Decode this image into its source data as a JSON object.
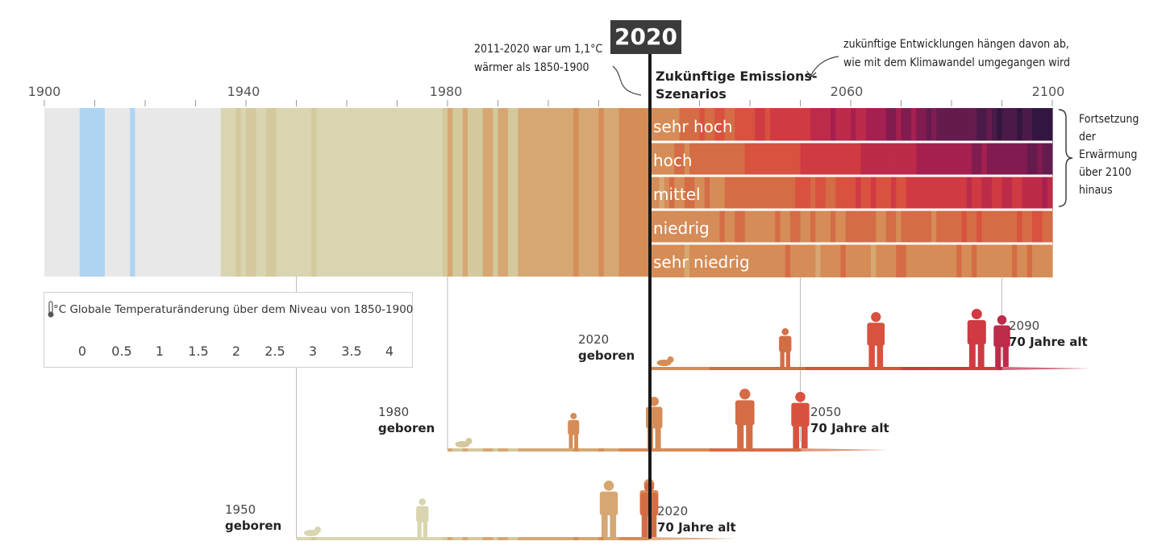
{
  "chart_data": {
    "type": "heatmap",
    "title": "",
    "x_axis": {
      "ticks": [
        "1900",
        "1940",
        "1980",
        "2060",
        "2100"
      ],
      "tick_years": [
        1900,
        1940,
        1980,
        2060,
        2100
      ],
      "range": [
        1900,
        2100
      ]
    },
    "highlight_year": "2020",
    "observed": {
      "years": [
        1900,
        1901,
        1902,
        1903,
        1904,
        1905,
        1906,
        1907,
        1908,
        1909,
        1910,
        1911,
        1912,
        1913,
        1914,
        1915,
        1916,
        1917,
        1918,
        1919,
        1920,
        1921,
        1922,
        1923,
        1924,
        1925,
        1926,
        1927,
        1928,
        1929,
        1930,
        1931,
        1932,
        1933,
        1934,
        1935,
        1936,
        1937,
        1938,
        1939,
        1940,
        1941,
        1942,
        1943,
        1944,
        1945,
        1946,
        1947,
        1948,
        1949,
        1950,
        1951,
        1952,
        1953,
        1954,
        1955,
        1956,
        1957,
        1958,
        1959,
        1960,
        1961,
        1962,
        1963,
        1964,
        1965,
        1966,
        1967,
        1968,
        1969,
        1970,
        1971,
        1972,
        1973,
        1974,
        1975,
        1976,
        1977,
        1978,
        1979,
        1980,
        1981,
        1982,
        1983,
        1984,
        1985,
        1986,
        1987,
        1988,
        1989,
        1990,
        1991,
        1992,
        1993,
        1994,
        1995,
        1996,
        1997,
        1998,
        1999,
        2000,
        2001,
        2002,
        2003,
        2004,
        2005,
        2006,
        2007,
        2008,
        2009,
        2010,
        2011,
        2012,
        2013,
        2014,
        2015,
        2016,
        2017,
        2018,
        2019,
        2020
      ],
      "values": [
        0.1,
        0.1,
        -0.1,
        0.1,
        0.1,
        -0.1,
        0.1,
        -0.3,
        -0.3,
        -0.3,
        -0.3,
        -0.3,
        -0.1,
        0.1,
        0.1,
        0.1,
        -0.1,
        -0.3,
        0.1,
        0.1,
        0.1,
        0.1,
        0.1,
        0.1,
        0.1,
        0.1,
        0.1,
        0.1,
        0.1,
        0.1,
        0.1,
        0.1,
        0.1,
        0.1,
        0.1,
        0.4,
        0.4,
        0.4,
        0.5,
        0.4,
        0.5,
        0.5,
        0.4,
        0.4,
        0.5,
        0.5,
        0.4,
        0.4,
        0.4,
        0.4,
        0.4,
        0.4,
        0.4,
        0.5,
        0.4,
        0.4,
        0.4,
        0.4,
        0.4,
        0.4,
        0.4,
        0.4,
        0.4,
        0.4,
        0.4,
        0.4,
        0.4,
        0.4,
        0.4,
        0.4,
        0.4,
        0.4,
        0.4,
        0.4,
        0.4,
        0.4,
        0.4,
        0.4,
        0.4,
        0.5,
        0.9,
        0.8,
        0.6,
        0.9,
        0.7,
        0.7,
        0.8,
        0.9,
        0.9,
        0.8,
        0.9,
        0.9,
        0.8,
        0.8,
        0.9,
        1.0,
        0.9,
        1.0,
        1.1,
        1.0,
        1.0,
        1.1,
        1.1,
        1.1,
        1.1,
        1.2,
        1.1,
        1.1,
        1.0,
        1.1,
        1.2,
        1.1,
        1.1,
        1.1,
        1.2,
        1.3,
        1.3,
        1.2,
        1.2,
        1.2,
        1.3
      ]
    },
    "scenarios": [
      {
        "name": "sehr hoch",
        "start": 1.3,
        "end": 4.4
      },
      {
        "name": "hoch",
        "start": 1.3,
        "end": 3.6
      },
      {
        "name": "mittel",
        "start": 1.3,
        "end": 2.7
      },
      {
        "name": "niedrig",
        "start": 1.3,
        "end": 1.8
      },
      {
        "name": "sehr niedrig",
        "start": 1.3,
        "end": 1.4
      }
    ],
    "legend": {
      "title": "°C Globale Temperaturänderung über dem Niveau von 1850-1900",
      "tick_labels": [
        "0",
        "0.5",
        "1",
        "1.5",
        "2",
        "2.5",
        "3",
        "3.5",
        "4"
      ],
      "tick_values": [
        0,
        0.5,
        1,
        1.5,
        2,
        2.5,
        3,
        3.5,
        4
      ],
      "range": [
        -0.5,
        4.5
      ],
      "colors": [
        "#afd4f2",
        "#e8e8e8",
        "#d9d5b0",
        "#d4c89d",
        "#d6a773",
        "#d58c57",
        "#d46c45",
        "#d8523f",
        "#cf3a43",
        "#bc2b4a",
        "#a52050",
        "#821c50",
        "#651b4d",
        "#4a1a48",
        "#321640"
      ]
    }
  },
  "header": {
    "year_2020": "2020",
    "scenarios_title_line1": "Zukünftige Emissions-",
    "scenarios_title_line2": "Szenarios"
  },
  "annotations": {
    "past_line1": "2011-2020 war um 1,1°C",
    "past_line2": "wärmer als 1850-1900",
    "future_line1": "zukünftige Entwicklungen hängen davon ab,",
    "future_line2": "wie mit dem Klimawandel umgegangen wird",
    "beyond_1": "Fortsetzung",
    "beyond_2": "der",
    "beyond_3": "Erwärmung",
    "beyond_4": "über 2100",
    "beyond_5": "hinaus"
  },
  "generations": [
    {
      "birth_year": "2020",
      "born_label": "geboren",
      "end_year": "2090",
      "age_label": "70 Jahre alt"
    },
    {
      "birth_year": "1980",
      "born_label": "geboren",
      "end_year": "2050",
      "age_label": "70 Jahre alt"
    },
    {
      "birth_year": "1950",
      "born_label": "geboren",
      "end_year": "2020",
      "age_label": "70 Jahre alt"
    }
  ]
}
